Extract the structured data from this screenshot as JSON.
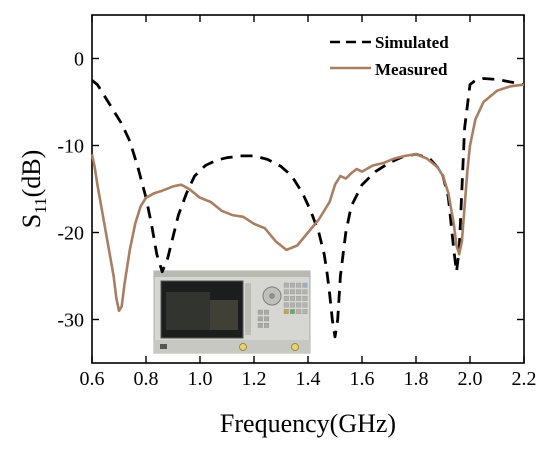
{
  "chart_data": {
    "type": "line",
    "xlabel": "Frequency(GHz)",
    "ylabel_main": "S",
    "ylabel_sub": "11",
    "ylabel_unit": "(dB)",
    "xlim": [
      0.6,
      2.2
    ],
    "ylim": [
      -35,
      5
    ],
    "xticks": [
      0.6,
      0.8,
      1.0,
      1.2,
      1.4,
      1.6,
      1.8,
      2.0,
      2.2
    ],
    "xtick_labels": [
      "0.6",
      "0.8",
      "1.0",
      "1.2",
      "1.4",
      "1.6",
      "1.8",
      "2.0",
      "2.2"
    ],
    "yticks": [
      0,
      -10,
      -20,
      -30
    ],
    "ytick_labels": [
      "0",
      "-10",
      "-20",
      "-30"
    ],
    "grid": false,
    "legend_position": "top-right",
    "series": [
      {
        "name": "Simulated",
        "color": "#000000",
        "style": "dashed",
        "x": [
          0.6,
          0.62,
          0.65,
          0.68,
          0.71,
          0.74,
          0.77,
          0.8,
          0.82,
          0.84,
          0.86,
          0.88,
          0.9,
          0.92,
          0.95,
          0.98,
          1.02,
          1.06,
          1.1,
          1.15,
          1.2,
          1.25,
          1.3,
          1.34,
          1.38,
          1.41,
          1.44,
          1.46,
          1.47,
          1.48,
          1.49,
          1.5,
          1.51,
          1.52,
          1.54,
          1.56,
          1.6,
          1.65,
          1.7,
          1.75,
          1.8,
          1.85,
          1.88,
          1.9,
          1.92,
          1.94,
          1.95,
          1.96,
          1.97,
          1.98,
          2.0,
          2.02,
          2.05,
          2.1,
          2.15,
          2.2
        ],
        "y": [
          -2.5,
          -3.0,
          -4.5,
          -6.0,
          -7.5,
          -9.5,
          -12.5,
          -16.0,
          -19.0,
          -22.5,
          -24.5,
          -23.0,
          -20.5,
          -18.0,
          -15.5,
          -13.5,
          -12.3,
          -11.7,
          -11.4,
          -11.2,
          -11.2,
          -11.6,
          -12.4,
          -13.5,
          -15.5,
          -17.5,
          -20.0,
          -22.5,
          -24.5,
          -27.0,
          -30.0,
          -32.0,
          -30.0,
          -25.0,
          -20.0,
          -17.0,
          -14.5,
          -13.0,
          -12.0,
          -11.3,
          -11.0,
          -11.5,
          -12.5,
          -13.5,
          -16.0,
          -22.0,
          -24.5,
          -22.0,
          -15.0,
          -8.0,
          -3.0,
          -2.5,
          -2.3,
          -2.4,
          -2.7,
          -3.0
        ]
      },
      {
        "name": "Measured",
        "color": "#a87f62",
        "style": "solid",
        "x": [
          0.6,
          0.61,
          0.62,
          0.64,
          0.66,
          0.68,
          0.69,
          0.7,
          0.71,
          0.72,
          0.74,
          0.76,
          0.78,
          0.8,
          0.83,
          0.86,
          0.9,
          0.93,
          0.96,
          1.0,
          1.04,
          1.08,
          1.12,
          1.16,
          1.2,
          1.24,
          1.28,
          1.32,
          1.36,
          1.4,
          1.44,
          1.48,
          1.5,
          1.52,
          1.54,
          1.56,
          1.58,
          1.6,
          1.64,
          1.68,
          1.72,
          1.76,
          1.8,
          1.84,
          1.88,
          1.9,
          1.92,
          1.94,
          1.95,
          1.96,
          1.97,
          1.98,
          1.99,
          2.0,
          2.02,
          2.05,
          2.1,
          2.15,
          2.2
        ],
        "y": [
          -11.0,
          -12.5,
          -14.5,
          -18.0,
          -21.5,
          -25.0,
          -27.5,
          -29.0,
          -28.5,
          -26.0,
          -22.0,
          -19.0,
          -17.0,
          -16.0,
          -15.5,
          -15.2,
          -14.7,
          -14.5,
          -15.0,
          -16.0,
          -16.5,
          -17.5,
          -18.0,
          -18.2,
          -19.0,
          -19.5,
          -21.0,
          -22.0,
          -21.5,
          -20.0,
          -18.5,
          -16.5,
          -14.5,
          -13.5,
          -13.8,
          -13.2,
          -12.7,
          -13.0,
          -12.3,
          -12.0,
          -11.5,
          -11.2,
          -11.0,
          -11.5,
          -12.5,
          -13.5,
          -15.5,
          -19.0,
          -21.5,
          -22.5,
          -21.0,
          -17.0,
          -13.0,
          -10.0,
          -7.0,
          -5.0,
          -3.7,
          -3.2,
          -3.0
        ]
      }
    ],
    "inset": {
      "image_name": "network-analyzer-photo",
      "range": {
        "x": [
          0.84,
          1.51
        ],
        "y": [
          -25.5,
          -33.5
        ]
      }
    }
  }
}
